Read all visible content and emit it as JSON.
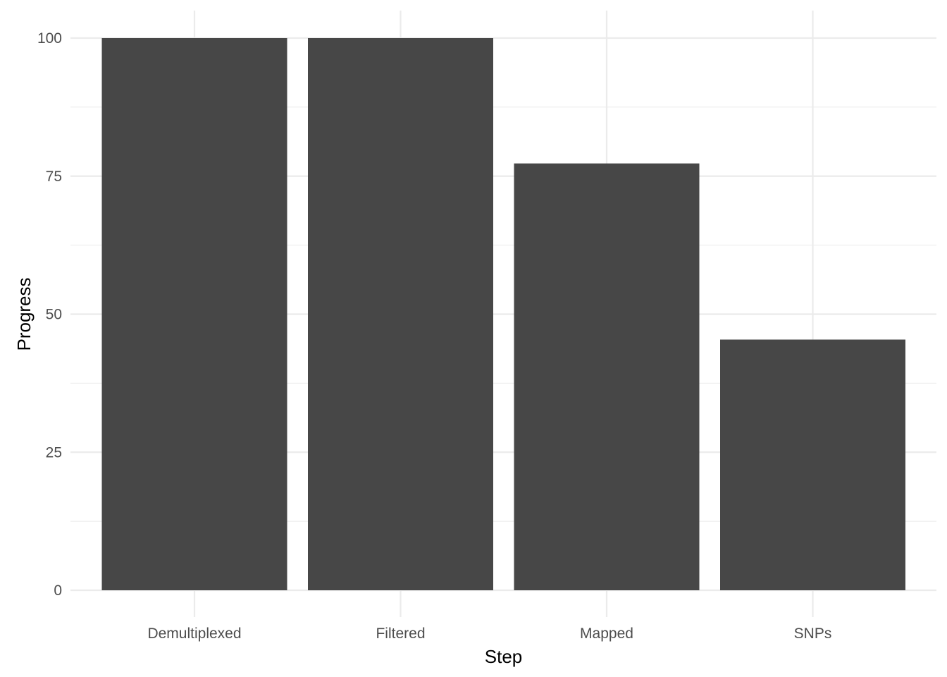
{
  "chart_data": {
    "type": "bar",
    "categories": [
      "Demultiplexed",
      "Filtered",
      "Mapped",
      "SNPs"
    ],
    "values": [
      100,
      100,
      77.3,
      45.4
    ],
    "title": "",
    "xlabel": "Step",
    "ylabel": "Progress",
    "ylim": [
      0,
      100
    ],
    "yticks": [
      0,
      25,
      50,
      75,
      100
    ],
    "grid": true,
    "legend": "none",
    "bar_color": "#474747",
    "grid_color": "#ebebeb"
  }
}
